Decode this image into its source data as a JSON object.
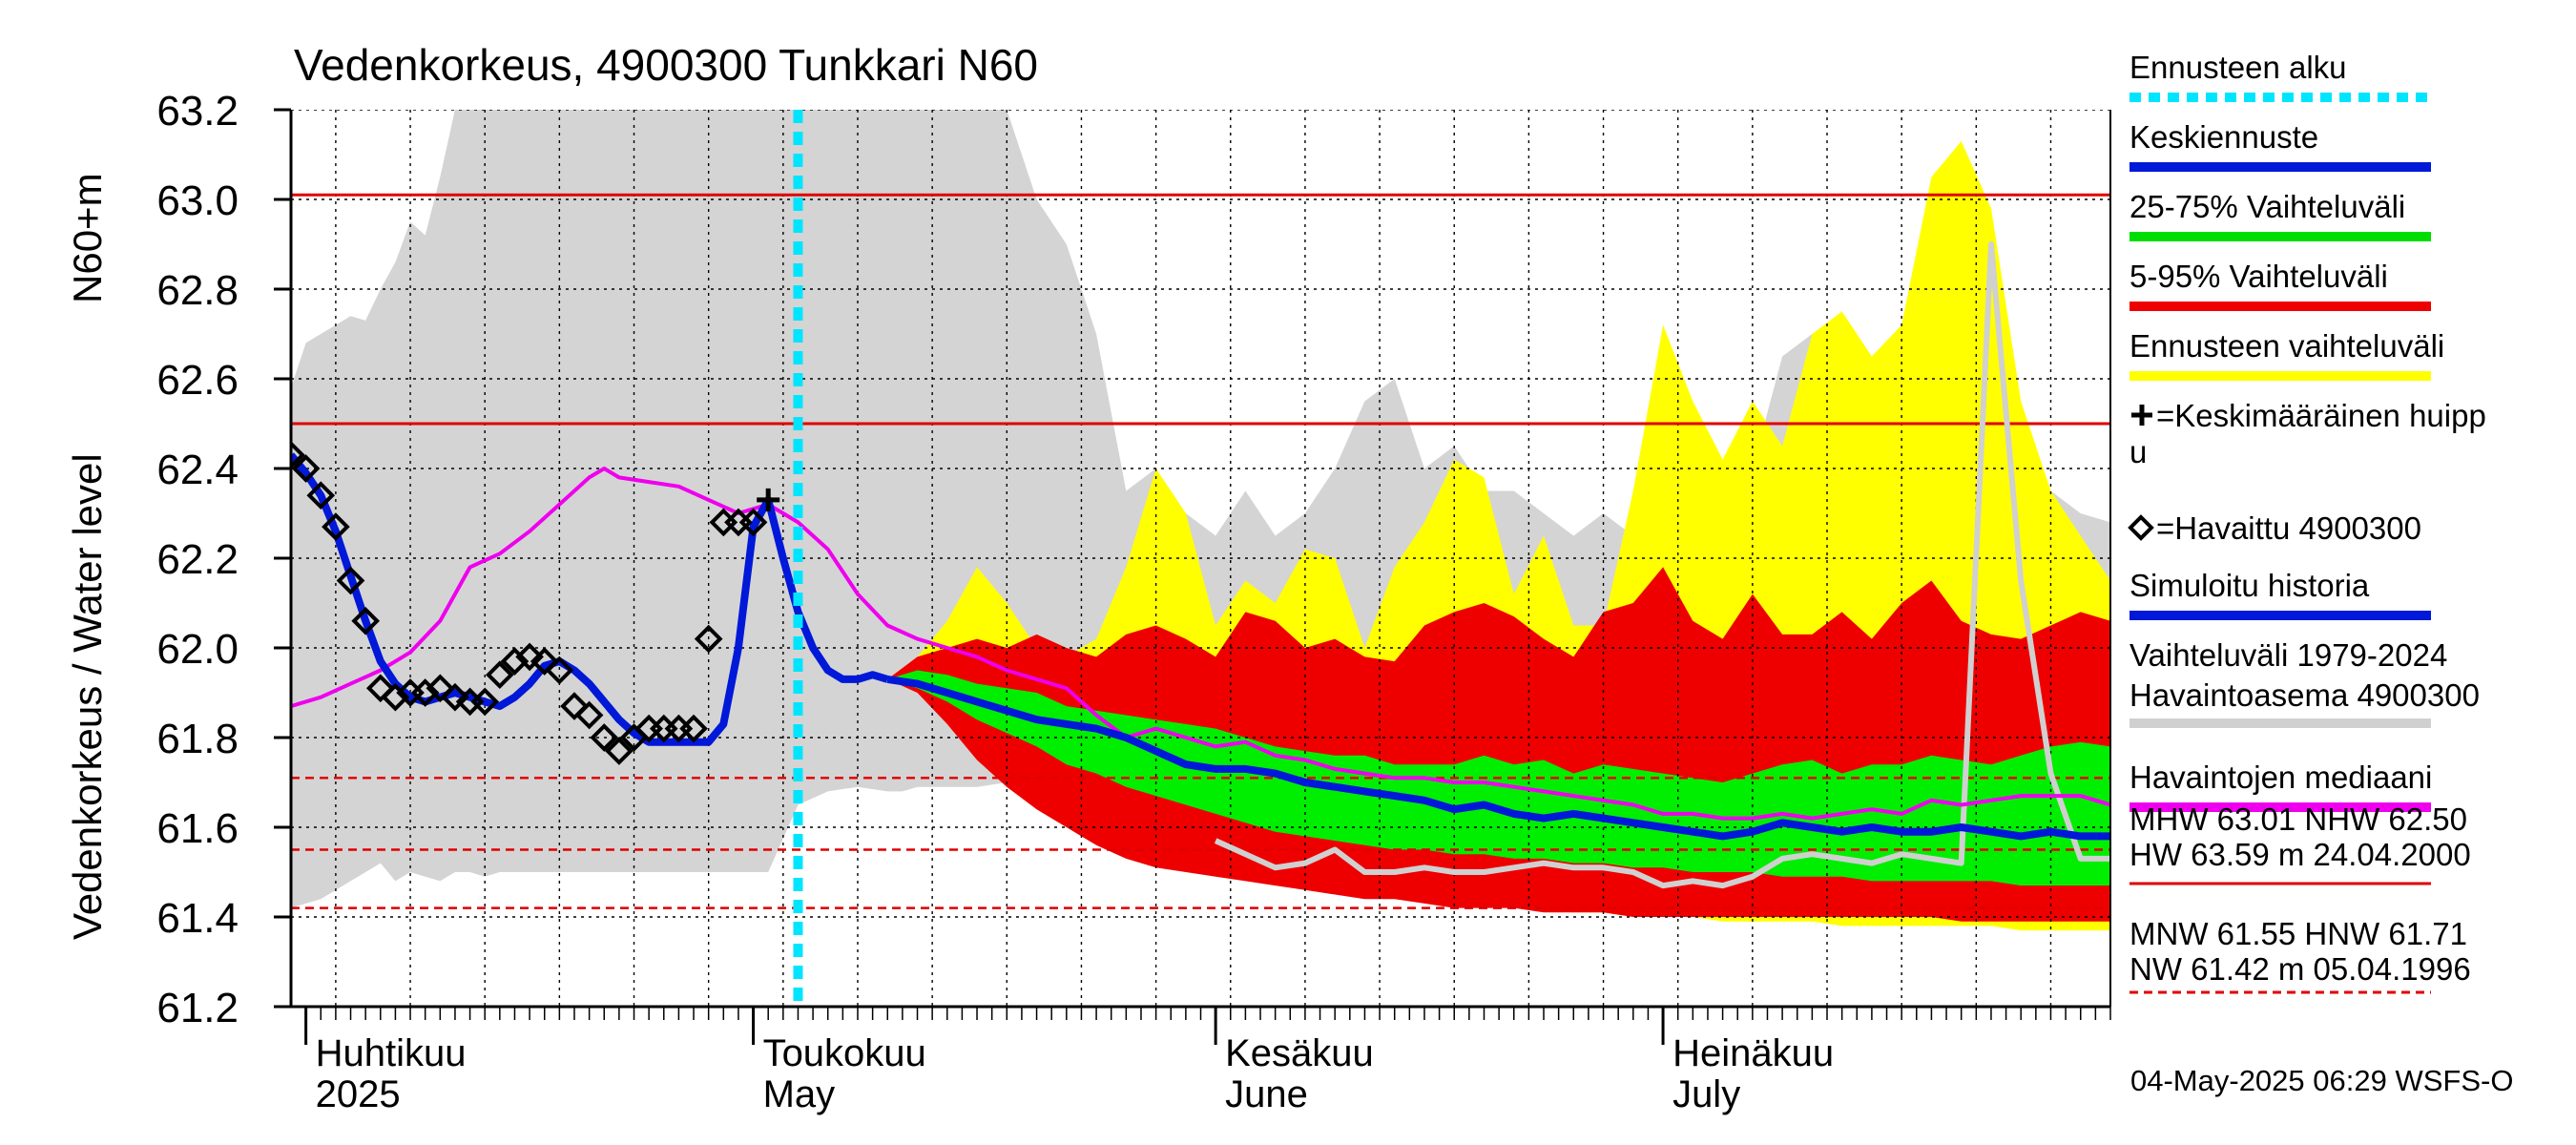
{
  "chart_data": {
    "type": "area",
    "title": "Vedenkorkeus, 4900300 Tunkkari N60",
    "ylabel_top": "N60+m",
    "ylabel_main": "Vedenkorkeus / Water level",
    "ylim": [
      61.2,
      63.2
    ],
    "yticks": [
      "61.2",
      "61.4",
      "61.6",
      "61.8",
      "62.0",
      "62.2",
      "62.4",
      "62.6",
      "62.8",
      "63.0",
      "63.2"
    ],
    "xlim": [
      "2025-03-31",
      "2025-07-31"
    ],
    "x_unit": "day of year 2025",
    "x_range_doy": [
      90,
      212
    ],
    "grid": true,
    "months": [
      {
        "fi": "Huhtikuu",
        "en": "2025",
        "doy": 91
      },
      {
        "fi": "Toukokuu",
        "en": "May",
        "doy": 121
      },
      {
        "fi": "Kesäkuu",
        "en": "June",
        "doy": 152
      },
      {
        "fi": "Heinäkuu",
        "en": "July",
        "doy": 182
      }
    ],
    "forecast_start_doy": 124,
    "reference_lines": {
      "solid": [
        63.01,
        62.5
      ],
      "dashed": [
        61.71,
        61.55,
        61.42
      ]
    },
    "history_band": {
      "x": [
        90,
        91,
        92,
        93,
        94,
        95,
        96,
        97,
        98,
        99,
        100,
        101,
        102,
        103,
        104,
        106,
        108,
        110,
        112,
        114,
        116,
        118,
        120,
        121,
        122,
        124,
        126,
        128,
        130,
        131,
        132,
        134,
        136,
        138,
        140,
        142,
        144,
        146,
        148,
        150,
        152,
        154,
        156,
        158,
        160,
        162,
        164,
        166,
        168,
        170,
        172,
        174,
        176,
        178,
        180,
        182,
        184,
        186,
        188,
        190,
        192,
        194,
        196,
        198,
        200,
        202,
        204,
        206,
        208,
        210,
        212
      ],
      "upper": [
        62.58,
        62.68,
        62.7,
        62.72,
        62.74,
        62.73,
        62.8,
        62.86,
        62.95,
        62.92,
        63.05,
        63.25,
        63.25,
        63.25,
        63.25,
        63.25,
        63.25,
        63.25,
        63.25,
        63.25,
        63.25,
        63.25,
        63.25,
        63.25,
        63.25,
        63.25,
        63.25,
        63.25,
        63.25,
        63.25,
        63.25,
        63.25,
        63.25,
        63.25,
        63.0,
        62.9,
        62.7,
        62.35,
        62.4,
        62.3,
        62.25,
        62.35,
        62.25,
        62.3,
        62.4,
        62.55,
        62.6,
        62.4,
        62.45,
        62.35,
        62.35,
        62.3,
        62.25,
        62.3,
        62.25,
        62.45,
        62.5,
        62.3,
        62.4,
        62.65,
        62.7,
        62.55,
        62.35,
        62.35,
        62.6,
        62.55,
        62.3,
        62.4,
        62.35,
        62.3,
        62.28
      ],
      "lower": [
        61.42,
        61.43,
        61.44,
        61.46,
        61.48,
        61.5,
        61.52,
        61.48,
        61.5,
        61.49,
        61.48,
        61.5,
        61.5,
        61.49,
        61.5,
        61.5,
        61.5,
        61.5,
        61.5,
        61.5,
        61.5,
        61.5,
        61.5,
        61.5,
        61.5,
        61.65,
        61.68,
        61.69,
        61.68,
        61.68,
        61.69,
        61.69,
        61.69,
        61.7,
        61.7,
        61.69,
        61.68,
        61.66,
        61.65,
        61.64,
        61.63,
        61.62,
        61.61,
        61.61,
        61.6,
        61.6,
        61.6,
        61.59,
        61.59,
        61.58,
        61.58,
        61.58,
        61.58,
        61.57,
        61.57,
        61.57,
        61.57,
        61.56,
        61.56,
        61.56,
        61.56,
        61.56,
        61.56,
        61.55,
        61.55,
        61.55,
        61.55,
        61.55,
        61.55,
        61.55,
        61.55
      ]
    },
    "forecast_range": {
      "x": [
        130,
        132,
        134,
        136,
        138,
        140,
        142,
        144,
        146,
        148,
        150,
        152,
        154,
        156,
        158,
        160,
        162,
        164,
        166,
        168,
        170,
        172,
        174,
        176,
        178,
        180,
        182,
        184,
        186,
        188,
        190,
        192,
        194,
        196,
        198,
        200,
        202,
        204,
        206,
        208,
        210,
        212
      ],
      "upper": [
        61.93,
        61.98,
        62.06,
        62.18,
        62.1,
        62.0,
        61.98,
        62.02,
        62.18,
        62.4,
        62.3,
        62.05,
        62.15,
        62.1,
        62.22,
        62.2,
        62.0,
        62.18,
        62.28,
        62.42,
        62.38,
        62.12,
        62.25,
        62.05,
        62.05,
        62.35,
        62.72,
        62.55,
        62.42,
        62.55,
        62.45,
        62.7,
        62.75,
        62.65,
        62.72,
        63.05,
        63.13,
        62.98,
        62.55,
        62.35,
        62.25,
        62.15
      ],
      "lower": [
        61.93,
        61.91,
        61.84,
        61.77,
        61.71,
        61.66,
        61.62,
        61.58,
        61.55,
        61.53,
        61.52,
        61.51,
        61.5,
        61.49,
        61.48,
        61.47,
        61.46,
        61.45,
        61.44,
        61.43,
        61.43,
        61.42,
        61.42,
        61.41,
        61.41,
        61.4,
        61.4,
        61.4,
        61.39,
        61.39,
        61.39,
        61.39,
        61.38,
        61.38,
        61.38,
        61.38,
        61.38,
        61.38,
        61.37,
        61.37,
        61.37,
        61.37
      ]
    },
    "band_5_95": {
      "x": [
        130,
        132,
        134,
        136,
        138,
        140,
        142,
        144,
        146,
        148,
        150,
        152,
        154,
        156,
        158,
        160,
        162,
        164,
        166,
        168,
        170,
        172,
        174,
        176,
        178,
        180,
        182,
        184,
        186,
        188,
        190,
        192,
        194,
        196,
        198,
        200,
        202,
        204,
        206,
        208,
        210,
        212
      ],
      "upper": [
        61.93,
        61.98,
        62.0,
        62.02,
        62.0,
        62.03,
        62.0,
        61.98,
        62.03,
        62.05,
        62.02,
        61.98,
        62.08,
        62.06,
        62.0,
        62.02,
        61.98,
        61.97,
        62.05,
        62.08,
        62.1,
        62.07,
        62.02,
        61.98,
        62.08,
        62.1,
        62.18,
        62.06,
        62.02,
        62.12,
        62.03,
        62.03,
        62.08,
        62.02,
        62.1,
        62.15,
        62.06,
        62.03,
        62.02,
        62.05,
        62.08,
        62.06
      ],
      "lower": [
        61.93,
        61.9,
        61.83,
        61.75,
        61.69,
        61.64,
        61.6,
        61.56,
        61.53,
        61.51,
        61.5,
        61.49,
        61.48,
        61.47,
        61.46,
        61.45,
        61.44,
        61.44,
        61.43,
        61.42,
        61.42,
        61.42,
        61.41,
        61.41,
        61.41,
        61.4,
        61.4,
        61.4,
        61.4,
        61.4,
        61.4,
        61.4,
        61.4,
        61.4,
        61.4,
        61.4,
        61.39,
        61.39,
        61.39,
        61.39,
        61.39,
        61.39
      ]
    },
    "band_25_75": {
      "x": [
        130,
        132,
        134,
        136,
        138,
        140,
        142,
        144,
        146,
        148,
        150,
        152,
        154,
        156,
        158,
        160,
        162,
        164,
        166,
        168,
        170,
        172,
        174,
        176,
        178,
        180,
        182,
        184,
        186,
        188,
        190,
        192,
        194,
        196,
        198,
        200,
        202,
        204,
        206,
        208,
        210,
        212
      ],
      "upper": [
        61.93,
        61.95,
        61.94,
        61.92,
        61.91,
        61.9,
        61.87,
        61.86,
        61.85,
        61.84,
        61.83,
        61.82,
        61.8,
        61.78,
        61.77,
        61.76,
        61.76,
        61.74,
        61.74,
        61.74,
        61.76,
        61.74,
        61.75,
        61.72,
        61.74,
        61.73,
        61.72,
        61.71,
        61.7,
        61.72,
        61.74,
        61.75,
        61.72,
        61.74,
        61.74,
        61.76,
        61.75,
        61.74,
        61.76,
        61.78,
        61.79,
        61.78
      ],
      "lower": [
        61.93,
        61.91,
        61.88,
        61.84,
        61.81,
        61.78,
        61.74,
        61.72,
        61.69,
        61.67,
        61.65,
        61.63,
        61.61,
        61.59,
        61.58,
        61.57,
        61.56,
        61.55,
        61.55,
        61.54,
        61.54,
        61.53,
        61.53,
        61.52,
        61.52,
        61.51,
        61.51,
        61.5,
        61.5,
        61.5,
        61.49,
        61.49,
        61.49,
        61.48,
        61.48,
        61.48,
        61.48,
        61.48,
        61.47,
        61.47,
        61.47,
        61.47
      ]
    },
    "series": [
      {
        "name": "Simuloitu historia",
        "role": "simulated",
        "x": [
          90,
          91,
          92,
          93,
          94,
          95,
          96,
          97,
          98,
          99,
          100,
          101,
          102,
          103,
          104,
          105,
          106,
          107,
          108,
          109,
          110,
          111,
          112,
          113,
          114,
          115,
          116,
          117,
          118,
          119,
          120,
          121,
          122,
          123,
          124,
          125,
          126,
          127,
          128,
          129,
          130
        ],
        "values": [
          62.43,
          62.39,
          62.34,
          62.26,
          62.16,
          62.06,
          61.97,
          61.92,
          61.89,
          61.88,
          61.89,
          61.9,
          61.89,
          61.88,
          61.87,
          61.89,
          61.92,
          61.96,
          61.97,
          61.95,
          61.92,
          61.88,
          61.84,
          61.81,
          61.79,
          61.79,
          61.79,
          61.79,
          61.79,
          61.83,
          62.0,
          62.27,
          62.33,
          62.2,
          62.08,
          62.0,
          61.95,
          61.93,
          61.93,
          61.94,
          61.93
        ]
      },
      {
        "name": "Keskiennuste",
        "role": "forecast_mean",
        "x": [
          130,
          132,
          134,
          136,
          138,
          140,
          142,
          144,
          146,
          148,
          150,
          152,
          154,
          156,
          158,
          160,
          162,
          164,
          166,
          168,
          170,
          172,
          174,
          176,
          178,
          180,
          182,
          184,
          186,
          188,
          190,
          192,
          194,
          196,
          198,
          200,
          202,
          204,
          206,
          208,
          210,
          212
        ],
        "values": [
          61.93,
          61.92,
          61.9,
          61.88,
          61.86,
          61.84,
          61.83,
          61.82,
          61.8,
          61.77,
          61.74,
          61.73,
          61.73,
          61.72,
          61.7,
          61.69,
          61.68,
          61.67,
          61.66,
          61.64,
          61.65,
          61.63,
          61.62,
          61.63,
          61.62,
          61.61,
          61.6,
          61.59,
          61.58,
          61.59,
          61.61,
          61.6,
          61.59,
          61.6,
          61.59,
          61.59,
          61.6,
          61.59,
          61.58,
          61.59,
          61.58,
          61.58
        ]
      },
      {
        "name": "Havaintojen mediaani",
        "role": "median",
        "x": [
          90,
          92,
          94,
          96,
          98,
          100,
          102,
          104,
          106,
          108,
          110,
          111,
          112,
          114,
          116,
          118,
          120,
          122,
          124,
          126,
          128,
          130,
          132,
          134,
          136,
          138,
          140,
          142,
          144,
          146,
          148,
          150,
          152,
          154,
          156,
          158,
          160,
          162,
          164,
          166,
          168,
          170,
          172,
          174,
          176,
          178,
          180,
          182,
          184,
          186,
          188,
          190,
          192,
          194,
          196,
          198,
          200,
          202,
          204,
          206,
          208,
          210,
          212
        ],
        "values": [
          61.87,
          61.89,
          61.92,
          61.95,
          61.99,
          62.06,
          62.18,
          62.21,
          62.26,
          62.32,
          62.38,
          62.4,
          62.38,
          62.37,
          62.36,
          62.33,
          62.3,
          62.32,
          62.28,
          62.22,
          62.12,
          62.05,
          62.02,
          62.0,
          61.98,
          61.95,
          61.93,
          61.91,
          61.85,
          61.8,
          61.82,
          61.8,
          61.78,
          61.79,
          61.76,
          61.75,
          61.73,
          61.72,
          61.71,
          61.71,
          61.7,
          61.7,
          61.69,
          61.68,
          61.67,
          61.66,
          61.65,
          61.63,
          61.63,
          61.62,
          61.62,
          61.63,
          61.62,
          61.63,
          61.64,
          61.63,
          61.66,
          61.65,
          61.66,
          61.67,
          61.67,
          61.67,
          61.65
        ]
      },
      {
        "name": "Havaintoasema 4900300",
        "role": "station",
        "x": [
          152,
          154,
          156,
          158,
          160,
          162,
          164,
          166,
          168,
          170,
          172,
          174,
          176,
          178,
          180,
          182,
          184,
          186,
          188,
          190,
          192,
          194,
          196,
          198,
          200,
          202,
          204,
          206,
          208,
          210,
          212
        ],
        "values": [
          61.57,
          61.54,
          61.51,
          61.52,
          61.55,
          61.5,
          61.5,
          61.51,
          61.5,
          61.5,
          61.51,
          61.52,
          61.51,
          61.51,
          61.5,
          61.47,
          61.48,
          61.47,
          61.49,
          61.53,
          61.54,
          61.53,
          61.52,
          61.54,
          61.53,
          61.52,
          62.9,
          62.15,
          61.72,
          61.53,
          61.53
        ]
      },
      {
        "name": "Havaittu 4900300",
        "role": "observed",
        "x": [
          90,
          91,
          92,
          93,
          94,
          95,
          96,
          97,
          98,
          99,
          100,
          101,
          102,
          103,
          104,
          105,
          106,
          107,
          108,
          109,
          110,
          111,
          112,
          113,
          114,
          115,
          116,
          117,
          118,
          119,
          120,
          121
        ],
        "values": [
          62.43,
          62.4,
          62.34,
          62.27,
          62.15,
          62.06,
          61.91,
          61.89,
          61.9,
          61.9,
          61.91,
          61.89,
          61.88,
          61.88,
          61.94,
          61.97,
          61.98,
          61.97,
          61.95,
          61.87,
          61.85,
          61.8,
          61.77,
          61.8,
          61.82,
          61.82,
          61.82,
          61.82,
          62.02,
          62.28,
          62.28,
          62.28
        ]
      }
    ],
    "mean_peak": {
      "x": 122,
      "value": 62.33
    },
    "legend": [
      {
        "label": "Ennusteen alku",
        "color": "#00e5ff",
        "style": "dotted"
      },
      {
        "label": "Keskiennuste",
        "color": "#0018d8",
        "style": "line"
      },
      {
        "label": "25-75% Vaihteluväli",
        "color": "#00dd00",
        "style": "line"
      },
      {
        "label": "5-95% Vaihteluväli",
        "color": "#ee0000",
        "style": "line"
      },
      {
        "label": "Ennusteen vaihteluväli",
        "color": "#ffff00",
        "style": "line"
      },
      {
        "label": "=Keskimääräinen huipp",
        "label2": "u",
        "marker": "plus"
      },
      {
        "label": "=Havaittu 4900300",
        "marker": "diamond"
      },
      {
        "label": "Simuloitu historia",
        "color": "#0018d8",
        "style": "line"
      },
      {
        "label": "Vaihteluväli 1979-2024",
        "label2": " Havaintoasema 4900300",
        "color": "#d0d0d0",
        "style": "line"
      },
      {
        "label": "Havaintojen mediaani",
        "color": "#ee00ee",
        "style": "line"
      }
    ],
    "stats": {
      "line1": "MHW  63.01 NHW  62.50",
      "line2": "HW  63.59 m 24.04.2000",
      "line3": "MNW  61.55 HNW  61.71",
      "line4": "NW  61.42 m 05.04.1996"
    },
    "footer": "04-May-2025 06:29 WSFS-O",
    "colors": {
      "history_band": "#d4d4d4",
      "forecast_range": "#ffff00",
      "band_5_95": "#ee0000",
      "band_25_75": "#00ee00",
      "mean": "#0018d8",
      "median": "#ee00ee",
      "station": "#d0d0d0",
      "forecast_start": "#00e5ff",
      "ref_line": "#e00000"
    }
  }
}
